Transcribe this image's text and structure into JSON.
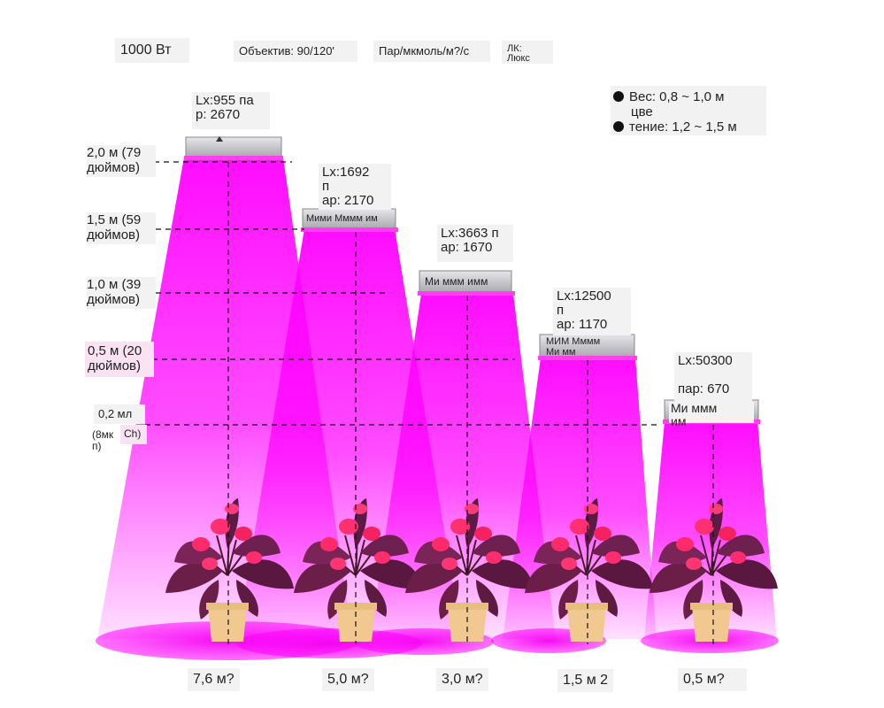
{
  "top_bar": {
    "power": "1000 Вт",
    "lens": "Объектив: 90/120'",
    "par_unit": "Пар/мкмоль/м?/с",
    "lux_unit_line1": "ЛК:",
    "lux_unit_line2": "Люкс"
  },
  "legend": {
    "veg": "Вес: 0,8 ~ 1,0 м",
    "bloom_1": "цве",
    "bloom_2": "тение: 1,2 ~ 1,5 м"
  },
  "heights": [
    {
      "label": "2,0 м (79\nдюймов)"
    },
    {
      "label": "1,5 м (59\nдюймов)"
    },
    {
      "label": "1,0 м (39\nдюймов)"
    },
    {
      "label": "0,5 м (20\nдюймов)"
    },
    {
      "label_a": "0,2 мл",
      "label_b": "(8мк",
      "label_c": "Ch)",
      "label_d": "п)"
    }
  ],
  "lamps": [
    {
      "lx": "Lx:955 па\nр: 2670",
      "panel": ""
    },
    {
      "lx": "Lx:1692\nп\nар: 2170",
      "panel": "Мими Мммм им"
    },
    {
      "lx": "Lx:3663 п\nар: 1670",
      "panel": "Ми ммм имм"
    },
    {
      "lx": "Lx:12500\nп\nар: 1170",
      "panel": "МИМ Мммм\nМи мм"
    },
    {
      "lx": "Lx:50300\n\nпар: 670",
      "panel": "Ми ммм\nим"
    }
  ],
  "areas": [
    "7,6 м?",
    "5,0 м?",
    "3,0 м?",
    "1,5 м 2",
    "0,5 м?"
  ],
  "colors": {
    "beam": "#ff00ff",
    "glow": "#f040e8",
    "panel": "#c8c8cc"
  }
}
